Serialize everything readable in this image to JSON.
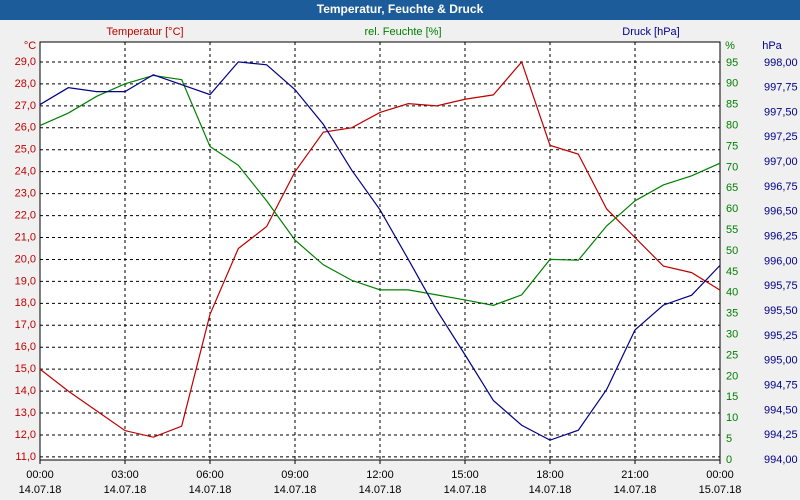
{
  "chart_data": {
    "type": "line",
    "title": "Temperatur, Feuchte & Druck",
    "x": [
      0,
      1,
      2,
      3,
      4,
      5,
      6,
      7,
      8,
      9,
      10,
      11,
      12,
      13,
      14,
      15,
      16,
      17,
      18,
      19,
      20,
      21,
      22,
      23,
      24
    ],
    "xlim": [
      0,
      24
    ],
    "xticks": [
      {
        "value": 0,
        "label": "00:00",
        "date": "14.07.18"
      },
      {
        "value": 3,
        "label": "03:00",
        "date": "14.07.18"
      },
      {
        "value": 6,
        "label": "06:00",
        "date": "14.07.18"
      },
      {
        "value": 9,
        "label": "09:00",
        "date": "14.07.18"
      },
      {
        "value": 12,
        "label": "12:00",
        "date": "14.07.18"
      },
      {
        "value": 15,
        "label": "15:00",
        "date": "14.07.18"
      },
      {
        "value": 18,
        "label": "18:00",
        "date": "14.07.18"
      },
      {
        "value": 21,
        "label": "21:00",
        "date": "14.07.18"
      },
      {
        "value": 24,
        "label": "00:00",
        "date": "15.07.18"
      }
    ],
    "grid": true,
    "axes": [
      {
        "label": "Temperatur [°C]",
        "unit": "°C",
        "color": "#c00000",
        "side": "left",
        "lim": [
          10.86,
          29.91
        ],
        "ticks": [
          {
            "value": 11,
            "label": "11,0"
          },
          {
            "value": 12,
            "label": "12,0"
          },
          {
            "value": 13,
            "label": "13,0"
          },
          {
            "value": 14,
            "label": "14,0"
          },
          {
            "value": 15,
            "label": "15,0"
          },
          {
            "value": 16,
            "label": "16,0"
          },
          {
            "value": 17,
            "label": "17,0"
          },
          {
            "value": 18,
            "label": "18,0"
          },
          {
            "value": 19,
            "label": "19,0"
          },
          {
            "value": 20,
            "label": "20,0"
          },
          {
            "value": 21,
            "label": "21,0"
          },
          {
            "value": 22,
            "label": "22,0"
          },
          {
            "value": 23,
            "label": "23,0"
          },
          {
            "value": 24,
            "label": "24,0"
          },
          {
            "value": 25,
            "label": "25,0"
          },
          {
            "value": 26,
            "label": "26,0"
          },
          {
            "value": 27,
            "label": "27,0"
          },
          {
            "value": 28,
            "label": "28,0"
          },
          {
            "value": 29,
            "label": "29,0"
          }
        ]
      },
      {
        "label": "rel. Feuchte [%]",
        "unit": "%",
        "color": "#008000",
        "side": "right",
        "lim": [
          0,
          100
        ],
        "ticks": [
          0,
          5,
          10,
          15,
          20,
          25,
          30,
          35,
          40,
          45,
          50,
          55,
          60,
          65,
          70,
          75,
          80,
          85,
          90,
          95
        ]
      },
      {
        "label": "Druck [hPa]",
        "unit": "hPa",
        "color": "#00008b",
        "side": "right2",
        "lim": [
          994,
          998.21
        ],
        "ticks": [
          {
            "value": 994,
            "label": "994,00"
          },
          {
            "value": 994.25,
            "label": "994,25"
          },
          {
            "value": 994.5,
            "label": "994,50"
          },
          {
            "value": 994.75,
            "label": "994,75"
          },
          {
            "value": 995,
            "label": "995,00"
          },
          {
            "value": 995.25,
            "label": "995,25"
          },
          {
            "value": 995.5,
            "label": "995,50"
          },
          {
            "value": 995.75,
            "label": "995,75"
          },
          {
            "value": 996,
            "label": "996,00"
          },
          {
            "value": 996.25,
            "label": "996,25"
          },
          {
            "value": 996.5,
            "label": "996,50"
          },
          {
            "value": 996.75,
            "label": "996,75"
          },
          {
            "value": 997,
            "label": "997,00"
          },
          {
            "value": 997.25,
            "label": "997,25"
          },
          {
            "value": 997.5,
            "label": "997,50"
          },
          {
            "value": 997.75,
            "label": "997,75"
          },
          {
            "value": 998,
            "label": "998,00"
          }
        ]
      }
    ],
    "series": [
      {
        "name": "Temperatur",
        "color": "#c00000",
        "axis": 0,
        "values": [
          15.0,
          14.0,
          13.1,
          12.2,
          11.9,
          12.4,
          17.5,
          20.5,
          21.5,
          24.0,
          25.8,
          26.0,
          26.7,
          27.1,
          27.0,
          27.3,
          27.5,
          29.0,
          25.2,
          24.8,
          22.3,
          21.0,
          19.7,
          19.4,
          18.6
        ]
      },
      {
        "name": "rel. Feuchte",
        "color": "#008000",
        "axis": 1,
        "values": [
          80,
          83,
          87,
          90,
          92,
          91,
          75,
          70.5,
          62,
          52.6,
          46.7,
          43,
          40.7,
          40.7,
          39.5,
          38.3,
          37,
          39.5,
          48,
          47.8,
          56,
          62,
          65.8,
          68,
          71
        ]
      },
      {
        "name": "Druck",
        "color": "#00008b",
        "axis": 2,
        "values": [
          997.58,
          997.75,
          997.71,
          997.71,
          997.88,
          997.78,
          997.68,
          998.01,
          997.98,
          997.73,
          997.38,
          996.92,
          996.52,
          996.02,
          995.51,
          995.06,
          994.6,
          994.35,
          994.2,
          994.3,
          994.71,
          995.31,
          995.56,
          995.66,
          995.96
        ]
      }
    ]
  }
}
